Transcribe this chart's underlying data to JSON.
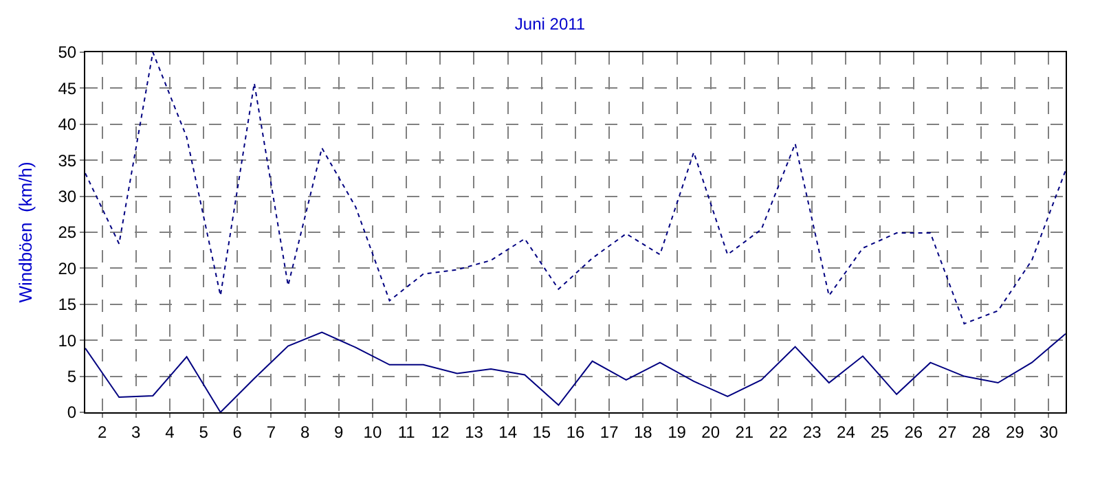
{
  "chart_data": {
    "type": "line",
    "title": "Juni 2011",
    "ylabel": "Windböen  (km/h)",
    "x": [
      1.5,
      2.5,
      3.5,
      4.5,
      5.5,
      6.5,
      7.5,
      8.5,
      9.5,
      10.5,
      11.5,
      12.5,
      13.5,
      14.5,
      15.5,
      16.5,
      17.5,
      18.5,
      19.5,
      20.5,
      21.5,
      22.5,
      23.5,
      24.5,
      25.5,
      26.5,
      27.5,
      28.5,
      29.5,
      30.5
    ],
    "series": [
      {
        "color": "#000080",
        "line_style": "dotted",
        "values": [
          33.2,
          23.4,
          50,
          38.2,
          16.2,
          45.7,
          17.6,
          36.7,
          28.5,
          15.5,
          19.2,
          19.8,
          21.1,
          24.1,
          17.1,
          21.4,
          24.8,
          21.9,
          36.1,
          21.9,
          25.4,
          37.3,
          16.2,
          22.8,
          24.9,
          24.9,
          12.3,
          14.1,
          21.1,
          33.6
        ]
      },
      {
        "color": "#000080",
        "line_style": "solid",
        "values": [
          8.9,
          2.1,
          2.3,
          7.7,
          0,
          4.7,
          9.2,
          11.1,
          9.0,
          6.6,
          6.6,
          5.4,
          6.0,
          5.2,
          1.0,
          7.1,
          4.5,
          6.9,
          4.3,
          2.2,
          4.5,
          9.1,
          4.1,
          7.8,
          2.5,
          6.9,
          5.0,
          4.1,
          6.9,
          10.9
        ]
      }
    ],
    "xlim": [
      1.5,
      30.5
    ],
    "xticks": [
      2,
      3,
      4,
      5,
      6,
      7,
      8,
      9,
      10,
      11,
      12,
      13,
      14,
      15,
      16,
      17,
      18,
      19,
      20,
      21,
      22,
      23,
      24,
      25,
      26,
      27,
      28,
      29,
      30
    ],
    "ylim": [
      0,
      50
    ],
    "yticks": [
      0,
      5,
      10,
      15,
      20,
      25,
      30,
      35,
      40,
      45,
      50
    ],
    "grid": true,
    "legend": false,
    "marker": "none"
  }
}
